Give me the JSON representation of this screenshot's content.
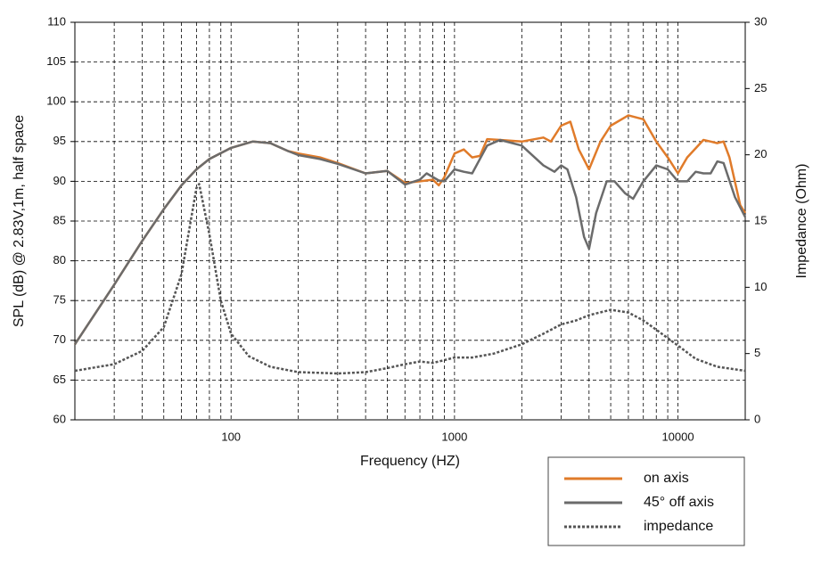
{
  "chart_data": {
    "type": "line",
    "x_label": "Frequency (HZ)",
    "y_label": "SPL (dB) @ 2.83V,1m, half space",
    "y2_label": "Impedance (Ohm)",
    "log_x": true,
    "grid": true,
    "legend": "bottom-right",
    "xlim": [
      20,
      20000
    ],
    "xticks": [
      100,
      1000,
      10000
    ],
    "x_minor_ticks": [
      30,
      40,
      50,
      60,
      70,
      80,
      90,
      200,
      300,
      400,
      500,
      600,
      700,
      800,
      900,
      2000,
      3000,
      4000,
      5000,
      6000,
      7000,
      8000,
      9000
    ],
    "ylim": [
      60,
      110
    ],
    "yticks": [
      60,
      65,
      70,
      75,
      80,
      85,
      90,
      95,
      100,
      105,
      110
    ],
    "y2lim": [
      0,
      30
    ],
    "y2ticks": [
      0,
      5,
      10,
      15,
      20,
      25,
      30
    ],
    "series": [
      {
        "name": "on axis",
        "color": "#e07b2a",
        "style": "solid",
        "x": [
          20,
          30,
          40,
          50,
          60,
          70,
          80,
          100,
          125,
          150,
          180,
          200,
          250,
          300,
          400,
          500,
          600,
          700,
          800,
          850,
          900,
          1000,
          1100,
          1200,
          1300,
          1400,
          1600,
          2000,
          2500,
          2700,
          3000,
          3300,
          3600,
          4000,
          4500,
          5000,
          6000,
          7000,
          8000,
          9000,
          10000,
          11000,
          13000,
          14000,
          15000,
          16000,
          17000,
          19000,
          20000
        ],
        "values": [
          69.5,
          77,
          82.5,
          86.5,
          89.5,
          91.5,
          92.8,
          94.2,
          95,
          94.8,
          93.8,
          93.5,
          93,
          92.3,
          91,
          91.3,
          89.8,
          90,
          90.2,
          89.5,
          90.5,
          93.5,
          94,
          93,
          93.2,
          95.3,
          95.2,
          95,
          95.5,
          95,
          97,
          97.5,
          94,
          91.5,
          95,
          97,
          98.3,
          97.8,
          95,
          93,
          91,
          93,
          95.2,
          95,
          94.8,
          95,
          93,
          87,
          86
        ]
      },
      {
        "name": "45° off axis",
        "color": "#6b6b6b",
        "style": "solid",
        "x": [
          20,
          30,
          40,
          50,
          60,
          70,
          80,
          100,
          125,
          150,
          180,
          200,
          250,
          300,
          400,
          500,
          600,
          700,
          750,
          850,
          900,
          1000,
          1100,
          1200,
          1400,
          1600,
          2000,
          2500,
          2800,
          3000,
          3200,
          3500,
          3800,
          4000,
          4300,
          4800,
          5200,
          5800,
          6300,
          7000,
          8000,
          9000,
          10000,
          11000,
          12000,
          13000,
          14000,
          15000,
          16000,
          18000,
          20000
        ],
        "values": [
          69.5,
          77,
          82.5,
          86.5,
          89.5,
          91.5,
          92.8,
          94.2,
          95,
          94.8,
          93.8,
          93.3,
          92.8,
          92.2,
          91,
          91.3,
          89.6,
          90.2,
          91,
          90.1,
          90,
          91.5,
          91.2,
          91,
          94.5,
          95.2,
          94.5,
          92,
          91.2,
          92,
          91.5,
          88,
          83,
          81.5,
          86,
          90,
          90,
          88.5,
          87.8,
          90,
          92,
          91.5,
          90,
          90,
          91.2,
          91,
          91,
          92.5,
          92.3,
          88,
          85.5
        ]
      },
      {
        "name": "impedance",
        "color": "#555555",
        "style": "dashed",
        "axis": "y2",
        "x": [
          20,
          30,
          40,
          50,
          60,
          70,
          72,
          80,
          90,
          100,
          120,
          150,
          200,
          300,
          400,
          500,
          600,
          700,
          800,
          900,
          1000,
          1200,
          1500,
          2000,
          2500,
          3000,
          3500,
          4000,
          5000,
          6000,
          7000,
          8000,
          10000,
          12000,
          15000,
          20000
        ],
        "values": [
          3.7,
          4.2,
          5.2,
          7,
          11,
          17.5,
          17.8,
          14,
          9,
          6.5,
          4.8,
          4,
          3.6,
          3.5,
          3.6,
          3.9,
          4.2,
          4.4,
          4.3,
          4.5,
          4.7,
          4.7,
          5,
          5.7,
          6.5,
          7.2,
          7.5,
          7.9,
          8.3,
          8.1,
          7.5,
          6.8,
          5.6,
          4.6,
          4,
          3.7
        ]
      }
    ]
  }
}
